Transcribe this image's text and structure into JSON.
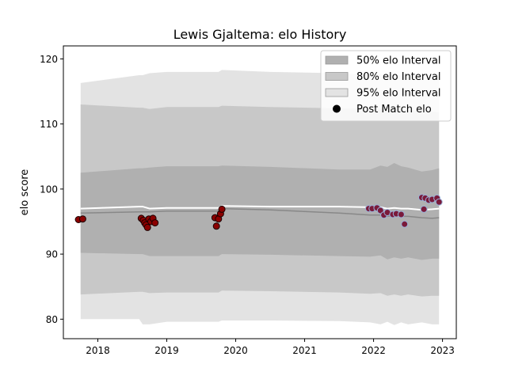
{
  "chart_data": {
    "type": "area",
    "title": "Lewis Gjaltema: elo History",
    "xlabel": "",
    "ylabel": "elo score",
    "xlim": [
      2017.5,
      2023.2
    ],
    "ylim": [
      77,
      122
    ],
    "x_ticks": [
      2018,
      2019,
      2020,
      2021,
      2022,
      2023
    ],
    "y_ticks": [
      80,
      90,
      100,
      110,
      120
    ],
    "grid": false,
    "legend_position": "top-right",
    "legend": [
      {
        "label": "50% elo Interval",
        "color": "#b0b0b0"
      },
      {
        "label": "80% elo Interval",
        "color": "#c8c8c8"
      },
      {
        "label": "95% elo Interval",
        "color": "#e3e3e3"
      },
      {
        "label": "Post Match elo",
        "color": "#000000"
      }
    ],
    "colors": {
      "band50": "#b0b0b0",
      "band80": "#c8c8c8",
      "band95": "#e3e3e3",
      "median_line": "#888888",
      "mean_line": "#ffffff",
      "points_early": "#8b0000",
      "points_late": "#7a1a3a",
      "points_late_edge": "#9ab0d8"
    },
    "bands": {
      "x": [
        2017.75,
        2018.6,
        2018.65,
        2018.75,
        2019.0,
        2019.75,
        2019.8,
        2020.5,
        2021.5,
        2021.95,
        2022.1,
        2022.2,
        2022.3,
        2022.4,
        2022.5,
        2022.7,
        2022.85,
        2022.95
      ],
      "p95_upper": [
        116.3,
        117.5,
        117.5,
        117.8,
        118.0,
        118.0,
        118.3,
        118.0,
        117.8,
        117.5,
        117.7,
        117.3,
        117.6,
        117.4,
        117.6,
        117.3,
        117.5,
        117.5
      ],
      "p95_lower": [
        80.0,
        80.0,
        79.2,
        79.2,
        79.6,
        79.6,
        79.8,
        79.8,
        79.7,
        79.5,
        79.2,
        79.6,
        79.1,
        79.5,
        79.2,
        79.5,
        79.2,
        79.2
      ],
      "p80_upper": [
        113.0,
        112.5,
        112.5,
        112.3,
        112.6,
        112.6,
        112.8,
        112.6,
        112.4,
        112.3,
        112.4,
        112.0,
        112.2,
        112.0,
        112.2,
        111.8,
        111.9,
        111.8
      ],
      "p80_lower": [
        83.8,
        84.2,
        84.2,
        84.0,
        84.1,
        84.1,
        84.4,
        84.3,
        84.1,
        83.9,
        84.0,
        83.6,
        83.8,
        83.6,
        83.8,
        83.5,
        83.6,
        83.6
      ],
      "p50_upper": [
        102.5,
        103.2,
        103.2,
        103.3,
        103.5,
        103.5,
        103.6,
        103.4,
        103.0,
        103.0,
        103.6,
        103.4,
        104.0,
        103.5,
        103.3,
        102.7,
        102.9,
        103.2
      ],
      "p50_lower": [
        90.2,
        90.0,
        90.0,
        89.7,
        89.7,
        89.7,
        90.0,
        89.9,
        89.7,
        89.6,
        89.8,
        89.2,
        89.5,
        89.3,
        89.5,
        89.1,
        89.3,
        89.3
      ],
      "median": [
        96.3,
        96.5,
        96.5,
        96.5,
        96.6,
        96.6,
        97.0,
        96.8,
        96.3,
        96.0,
        96.0,
        95.8,
        95.9,
        95.8,
        95.8,
        95.6,
        95.5,
        95.6
      ],
      "mean": [
        97.0,
        97.3,
        97.3,
        97.0,
        97.1,
        97.1,
        97.4,
        97.3,
        97.3,
        97.2,
        97.2,
        97.0,
        97.1,
        97.0,
        97.0,
        96.8,
        96.9,
        97.0
      ]
    },
    "points": [
      {
        "x": 2017.72,
        "y": 95.3,
        "group": "early"
      },
      {
        "x": 2017.78,
        "y": 95.4,
        "group": "early"
      },
      {
        "x": 2018.63,
        "y": 95.5,
        "group": "early"
      },
      {
        "x": 2018.66,
        "y": 95.2,
        "group": "early"
      },
      {
        "x": 2018.68,
        "y": 94.8,
        "group": "early"
      },
      {
        "x": 2018.7,
        "y": 94.5,
        "group": "early"
      },
      {
        "x": 2018.72,
        "y": 94.1,
        "group": "early"
      },
      {
        "x": 2018.74,
        "y": 95.4,
        "group": "early"
      },
      {
        "x": 2018.77,
        "y": 95.0,
        "group": "early"
      },
      {
        "x": 2018.8,
        "y": 95.5,
        "group": "early"
      },
      {
        "x": 2018.83,
        "y": 94.8,
        "group": "early"
      },
      {
        "x": 2019.7,
        "y": 95.6,
        "group": "early"
      },
      {
        "x": 2019.72,
        "y": 94.3,
        "group": "early"
      },
      {
        "x": 2019.75,
        "y": 95.4,
        "group": "early"
      },
      {
        "x": 2019.78,
        "y": 96.2,
        "group": "early"
      },
      {
        "x": 2019.8,
        "y": 96.9,
        "group": "early"
      },
      {
        "x": 2021.93,
        "y": 97.0,
        "group": "late"
      },
      {
        "x": 2021.98,
        "y": 97.0,
        "group": "late"
      },
      {
        "x": 2022.05,
        "y": 97.1,
        "group": "late"
      },
      {
        "x": 2022.1,
        "y": 96.7,
        "group": "late"
      },
      {
        "x": 2022.15,
        "y": 96.0,
        "group": "late"
      },
      {
        "x": 2022.2,
        "y": 96.4,
        "group": "late"
      },
      {
        "x": 2022.28,
        "y": 96.1,
        "group": "late"
      },
      {
        "x": 2022.33,
        "y": 96.2,
        "group": "late"
      },
      {
        "x": 2022.4,
        "y": 96.1,
        "group": "late"
      },
      {
        "x": 2022.45,
        "y": 94.6,
        "group": "late"
      },
      {
        "x": 2022.7,
        "y": 98.7,
        "group": "late"
      },
      {
        "x": 2022.73,
        "y": 96.9,
        "group": "late"
      },
      {
        "x": 2022.75,
        "y": 98.6,
        "group": "late"
      },
      {
        "x": 2022.8,
        "y": 98.3,
        "group": "late"
      },
      {
        "x": 2022.85,
        "y": 98.4,
        "group": "late"
      },
      {
        "x": 2022.92,
        "y": 98.6,
        "group": "late"
      },
      {
        "x": 2022.95,
        "y": 98.0,
        "group": "late"
      }
    ]
  }
}
